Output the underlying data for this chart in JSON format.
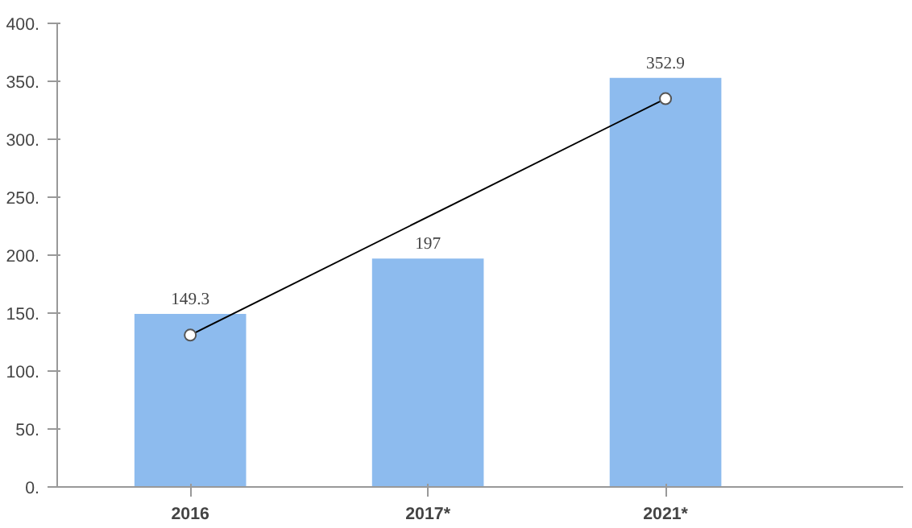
{
  "chart_data": {
    "type": "bar",
    "categories": [
      "2016",
      "2017*",
      "2021*"
    ],
    "series": [
      {
        "color": "#8dbbee",
        "values": [
          149.3,
          197,
          352.9
        ],
        "value_labels": [
          "149.3",
          "197",
          "352.9"
        ]
      },
      {
        "type": "line",
        "color": "#000000",
        "values": [
          131,
          null,
          335
        ],
        "marker": "circle"
      }
    ],
    "ylim": [
      0,
      400
    ],
    "yticks": [
      {
        "value": 0,
        "label": "0."
      },
      {
        "value": 50,
        "label": "50."
      },
      {
        "value": 100,
        "label": "100."
      },
      {
        "value": 150,
        "label": "150."
      },
      {
        "value": 200,
        "label": "200."
      },
      {
        "value": 250,
        "label": "250."
      },
      {
        "value": 300,
        "label": "300."
      },
      {
        "value": 350,
        "label": "350."
      },
      {
        "value": 400,
        "label": "400."
      }
    ],
    "grid": false
  }
}
